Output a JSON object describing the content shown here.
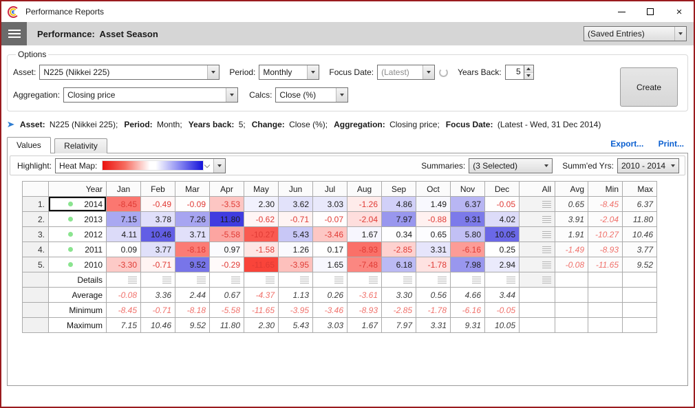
{
  "window": {
    "title": "Performance Reports"
  },
  "menubar": {
    "title": "Performance:  Asset Season",
    "saved_entries": "(Saved Entries)"
  },
  "options": {
    "legend": "Options",
    "asset_label": "Asset:",
    "asset_value": "N225 (Nikkei 225)",
    "period_label": "Period:",
    "period_value": "Monthly",
    "focus_date_label": "Focus Date:",
    "focus_date_value": "(Latest)",
    "years_back_label": "Years Back:",
    "years_back_value": "5",
    "aggregation_label": "Aggregation:",
    "aggregation_value": "Closing price",
    "calcs_label": "Calcs:",
    "calcs_value": "Close (%)",
    "create_label": "Create"
  },
  "summary_line": {
    "parts": [
      {
        "b": "Asset:",
        "t": "N225 (Nikkei 225);"
      },
      {
        "b": "Period:",
        "t": "Month;"
      },
      {
        "b": "Years back:",
        "t": "5;"
      },
      {
        "b": "Change:",
        "t": "Close (%);"
      },
      {
        "b": "Aggregation:",
        "t": "Closing price;"
      },
      {
        "b": "Focus Date:",
        "t": "(Latest - Wed, 31 Dec 2014)"
      }
    ]
  },
  "tabs": [
    {
      "label": "Values",
      "active": true
    },
    {
      "label": "Relativity",
      "active": false
    }
  ],
  "links": {
    "export": "Export...",
    "print": "Print..."
  },
  "toolbar": {
    "highlight_label": "Highlight:",
    "highlight_value": "Heat Map:",
    "summaries_label": "Summaries:",
    "summaries_value": "(3 Selected)",
    "summed_label": "Summ'ed Yrs:",
    "summed_value": "2010 - 2014"
  },
  "colors": {
    "heat_positive_max": "#403ce0",
    "heat_negative_max": "#f9443a",
    "negative_text": "#e03a34",
    "positive_text": "#1b1b1b",
    "window_border": "#9a1b1e",
    "link_blue": "#0a5fd0"
  },
  "table": {
    "year_header": "Year",
    "months": [
      "Jan",
      "Feb",
      "Mar",
      "Apr",
      "May",
      "Jun",
      "Jul",
      "Aug",
      "Sep",
      "Oct",
      "Nov",
      "Dec"
    ],
    "all_header": "All",
    "avg_header": "Avg",
    "min_header": "Min",
    "max_header": "Max",
    "vmax": 11.8,
    "vmin": -11.65,
    "rows": [
      {
        "num": "1.",
        "year": "2014",
        "focused": true,
        "values": [
          -8.45,
          -0.49,
          -0.09,
          -3.53,
          2.3,
          3.62,
          3.03,
          -1.26,
          4.86,
          1.49,
          6.37,
          -0.05
        ],
        "avg": 0.65,
        "min": -8.45,
        "max": 6.37
      },
      {
        "num": "2.",
        "year": "2013",
        "focused": false,
        "values": [
          7.15,
          3.78,
          7.26,
          11.8,
          -0.62,
          -0.71,
          -0.07,
          -2.04,
          7.97,
          -0.88,
          9.31,
          4.02
        ],
        "avg": 3.91,
        "min": -2.04,
        "max": 11.8
      },
      {
        "num": "3.",
        "year": "2012",
        "focused": false,
        "values": [
          4.11,
          10.46,
          3.71,
          -5.58,
          -10.27,
          5.43,
          -3.46,
          1.67,
          0.34,
          0.65,
          5.8,
          10.05
        ],
        "avg": 1.91,
        "min": -10.27,
        "max": 10.46
      },
      {
        "num": "4.",
        "year": "2011",
        "focused": false,
        "values": [
          0.09,
          3.77,
          -8.18,
          0.97,
          -1.58,
          1.26,
          0.17,
          -8.93,
          -2.85,
          3.31,
          -6.16,
          0.25
        ],
        "avg": -1.49,
        "min": -8.93,
        "max": 3.77
      },
      {
        "num": "5.",
        "year": "2010",
        "focused": false,
        "values": [
          -3.3,
          -0.71,
          9.52,
          -0.29,
          -11.65,
          -3.95,
          1.65,
          -7.48,
          6.18,
          -1.78,
          7.98,
          2.94
        ],
        "avg": -0.08,
        "min": -11.65,
        "max": 9.52
      }
    ],
    "summary_rows": [
      {
        "label": "Details",
        "type": "icons"
      },
      {
        "label": "Average",
        "type": "values",
        "values": [
          -0.08,
          3.36,
          2.44,
          0.67,
          -4.37,
          1.13,
          0.26,
          -3.61,
          3.3,
          0.56,
          4.66,
          3.44
        ]
      },
      {
        "label": "Minimum",
        "type": "values",
        "values": [
          -8.45,
          -0.71,
          -8.18,
          -5.58,
          -11.65,
          -3.95,
          -3.46,
          -8.93,
          -2.85,
          -1.78,
          -6.16,
          -0.05
        ]
      },
      {
        "label": "Maximum",
        "type": "values",
        "values": [
          7.15,
          10.46,
          9.52,
          11.8,
          2.3,
          5.43,
          3.03,
          1.67,
          7.97,
          3.31,
          9.31,
          10.05
        ]
      }
    ]
  }
}
